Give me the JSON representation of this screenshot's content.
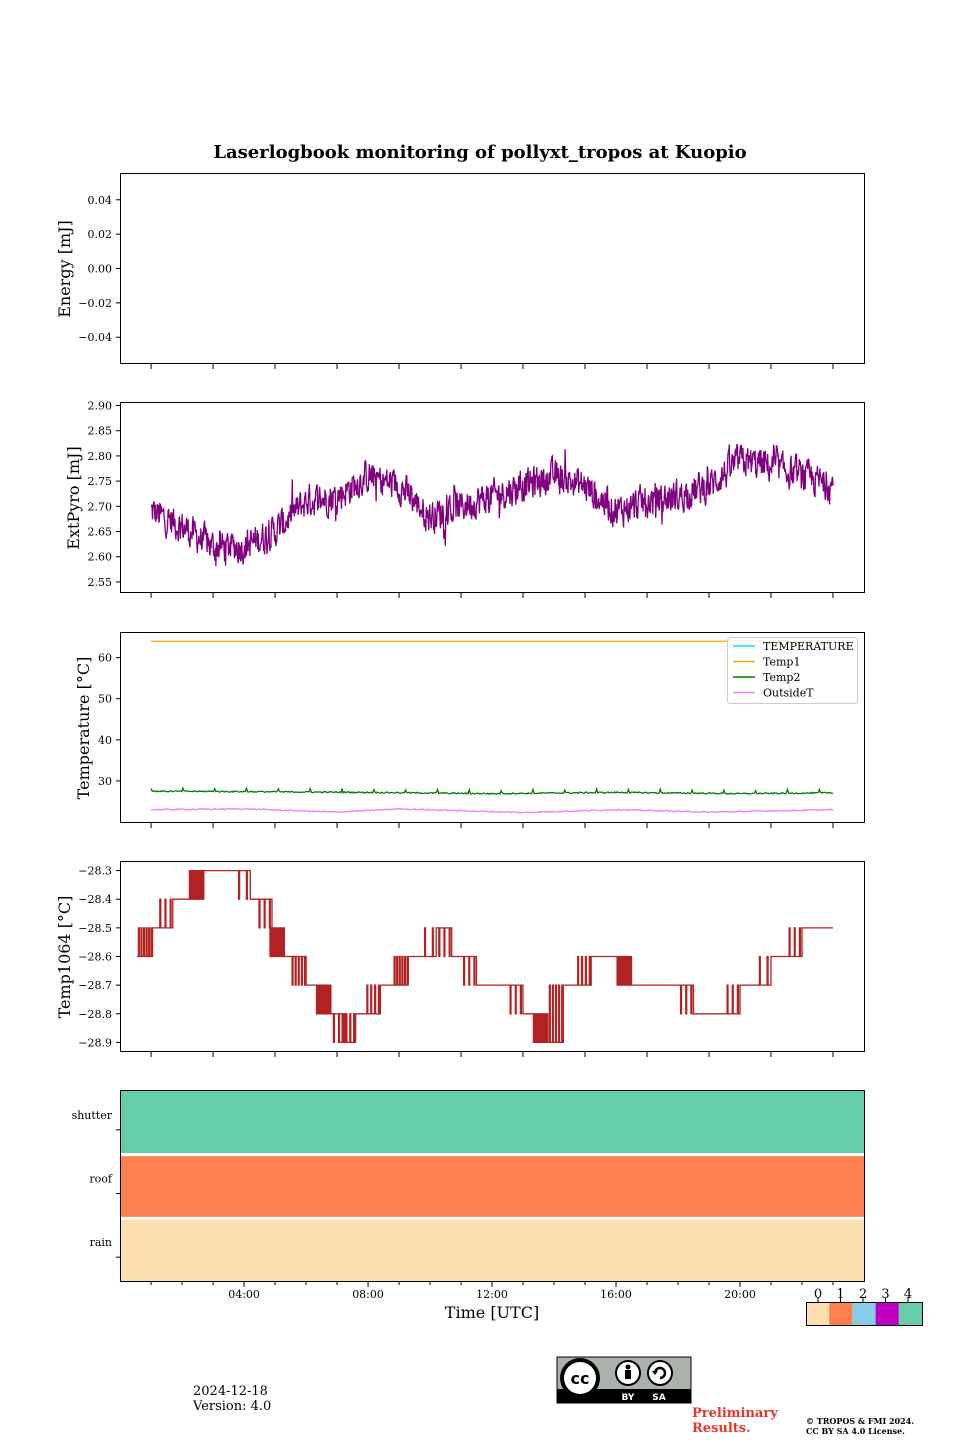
{
  "title": "Laserlogbook monitoring of pollyxt_tropos at Kuopio",
  "xlabel": "Time [UTC]",
  "x_ticks": [
    "04:00",
    "08:00",
    "12:00",
    "16:00",
    "20:00"
  ],
  "date_label": "2024-12-18",
  "version_label": "Version: 4.0",
  "preliminary": [
    "Preliminary",
    "Results."
  ],
  "copyright": [
    "© TROPOS & FMI 2024.",
    "CC BY SA 4.0 License."
  ],
  "license_badge": {
    "by": "BY",
    "sa": "SA",
    "icon": "cc-by-sa-icon"
  },
  "chart_data": [
    {
      "type": "line",
      "ylabel": "Energy [mJ]",
      "ylim": [
        -0.055,
        0.055
      ],
      "y_ticks": [
        "0.04",
        "0.02",
        "0.00",
        "−0.02",
        "−0.04"
      ],
      "y_tick_values": [
        0.04,
        0.02,
        0.0,
        -0.02,
        -0.04
      ],
      "series": []
    },
    {
      "type": "line",
      "ylabel": "ExtPyro [mJ]",
      "ylim": [
        2.53,
        2.905
      ],
      "y_ticks": [
        "2.90",
        "2.85",
        "2.80",
        "2.75",
        "2.70",
        "2.65",
        "2.60",
        "2.55"
      ],
      "y_tick_values": [
        2.9,
        2.85,
        2.8,
        2.75,
        2.7,
        2.65,
        2.6,
        2.55
      ],
      "series": [
        {
          "color": "#800080",
          "x_hours": [
            1,
            2,
            3,
            4,
            5,
            6,
            7,
            8,
            9,
            10,
            11,
            12,
            13,
            14,
            15,
            16,
            17,
            18,
            19,
            20,
            21,
            22,
            23
          ],
          "y": [
            2.69,
            2.66,
            2.62,
            2.62,
            2.65,
            2.71,
            2.72,
            2.76,
            2.74,
            2.68,
            2.7,
            2.72,
            2.74,
            2.76,
            2.74,
            2.69,
            2.71,
            2.72,
            2.74,
            2.79,
            2.78,
            2.76,
            2.74
          ]
        }
      ]
    },
    {
      "type": "line",
      "ylabel": "Temperature [°C]",
      "ylim": [
        20,
        66
      ],
      "y_ticks": [
        "60",
        "50",
        "40",
        "30"
      ],
      "y_tick_values": [
        60,
        50,
        40,
        30
      ],
      "legend_position": "top-right",
      "series": [
        {
          "name": "TEMPERATURE",
          "color": "#00e5e5",
          "x_hours": [],
          "y": []
        },
        {
          "name": "Temp1",
          "color": "#ffa500",
          "x_hours": [
            1,
            23
          ],
          "y": [
            64,
            64
          ]
        },
        {
          "name": "Temp2",
          "color": "#008000",
          "x_hours": [
            1,
            4,
            8,
            12,
            16,
            20,
            23
          ],
          "y": [
            27.5,
            27.4,
            27.2,
            26.9,
            27.2,
            26.9,
            27.1
          ]
        },
        {
          "name": "OutsideT",
          "color": "#ee82ee",
          "x_hours": [
            1,
            4,
            7,
            9,
            13,
            16,
            19,
            23
          ],
          "y": [
            23,
            23.2,
            22.4,
            23.2,
            22.3,
            23,
            22.4,
            23
          ]
        }
      ]
    },
    {
      "type": "line",
      "ylabel": "Temp1064 [°C]",
      "ylim": [
        -28.93,
        -28.27
      ],
      "y_ticks": [
        "−28.3",
        "−28.4",
        "−28.5",
        "−28.6",
        "−28.7",
        "−28.8",
        "−28.9"
      ],
      "y_tick_values": [
        -28.3,
        -28.4,
        -28.5,
        -28.6,
        -28.7,
        -28.8,
        -28.9
      ],
      "series": [
        {
          "color": "#b22222",
          "steps": [
            [
              1.0,
              -28.6
            ],
            [
              1.05,
              -28.5
            ],
            [
              1.7,
              -28.4
            ],
            [
              2.7,
              -28.3
            ],
            [
              4.2,
              -28.4
            ],
            [
              4.9,
              -28.5
            ],
            [
              5.3,
              -28.6
            ],
            [
              6.0,
              -28.7
            ],
            [
              6.8,
              -28.8
            ],
            [
              7.3,
              -28.9
            ],
            [
              7.6,
              -28.8
            ],
            [
              8.4,
              -28.7
            ],
            [
              9.3,
              -28.6
            ],
            [
              10.2,
              -28.5
            ],
            [
              10.7,
              -28.6
            ],
            [
              11.5,
              -28.7
            ],
            [
              13.0,
              -28.8
            ],
            [
              13.8,
              -28.9
            ],
            [
              14.3,
              -28.7
            ],
            [
              15.2,
              -28.6
            ],
            [
              16.5,
              -28.7
            ],
            [
              18.5,
              -28.8
            ],
            [
              20.0,
              -28.7
            ],
            [
              21.0,
              -28.6
            ],
            [
              22.0,
              -28.5
            ],
            [
              23.0,
              -28.5
            ]
          ]
        }
      ]
    },
    {
      "type": "heatmap",
      "rows": [
        "shutter",
        "roof",
        "rain"
      ],
      "row_values": [
        4,
        1,
        0
      ],
      "colorbar": {
        "ticks": [
          "0",
          "1",
          "2",
          "3",
          "4"
        ],
        "colors": [
          "#fddeb0",
          "#ff7f50",
          "#87ceeb",
          "#c000c0",
          "#66cdaa"
        ]
      }
    }
  ]
}
